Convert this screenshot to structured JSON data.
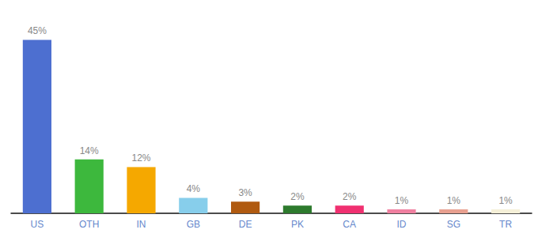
{
  "chart_data": {
    "type": "bar",
    "categories": [
      "US",
      "OTH",
      "IN",
      "GB",
      "DE",
      "PK",
      "CA",
      "ID",
      "SG",
      "TR"
    ],
    "values": [
      45,
      14,
      12,
      4,
      3,
      2,
      2,
      1,
      1,
      1
    ],
    "value_labels": [
      "45%",
      "14%",
      "12%",
      "4%",
      "3%",
      "2%",
      "2%",
      "1%",
      "1%",
      "1%"
    ],
    "colors": [
      "#4d6fd0",
      "#3db83d",
      "#f5a800",
      "#87ceeb",
      "#b05a10",
      "#2d7a2d",
      "#f03070",
      "#f080a0",
      "#e8a090",
      "#f5f0d8"
    ],
    "ylim": [
      0,
      50
    ],
    "grid": false,
    "data_labels": true,
    "tick_labels": "x"
  }
}
